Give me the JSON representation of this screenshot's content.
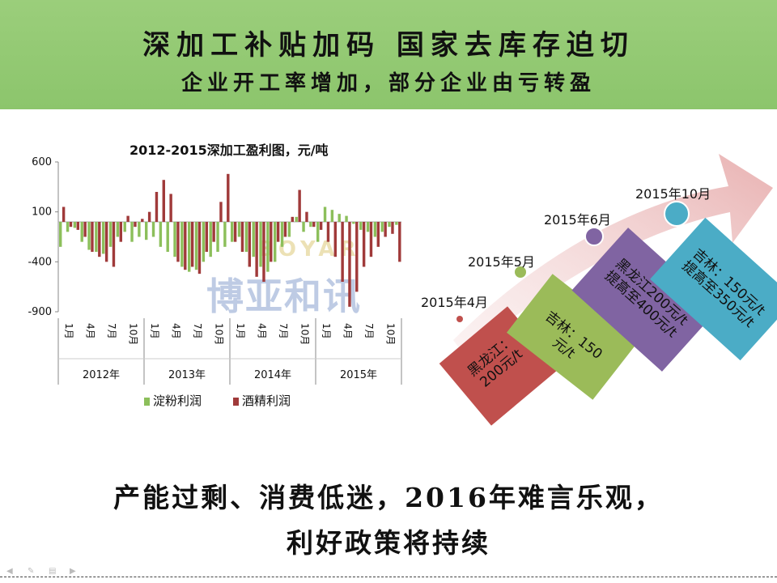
{
  "banner": {
    "line1": "深加工补贴加码  国家去库存迫切",
    "line2": "企业开工率增加，部分企业由亏转盈"
  },
  "watermark": {
    "cn": "博亚和讯",
    "en": "BOYAR"
  },
  "chart_data": {
    "type": "bar",
    "title": "2012-2015深加工盈利图，元/吨",
    "ylim": [
      -900,
      600
    ],
    "yticks": [
      "600",
      "100",
      "-400",
      "-900"
    ],
    "ytick_values": [
      600,
      100,
      -400,
      -900
    ],
    "month_ticks": [
      "1月",
      "4月",
      "7月",
      "10月"
    ],
    "years": [
      "2012年",
      "2013年",
      "2014年",
      "2015年"
    ],
    "series": [
      {
        "name": "淀粉利润",
        "color": "#8cbf5b",
        "values": [
          -250,
          -100,
          -60,
          -200,
          -280,
          -300,
          -320,
          -250,
          -150,
          -100,
          -200,
          -150,
          -180,
          -150,
          -250,
          -300,
          -350,
          -450,
          -500,
          -480,
          -400,
          -350,
          -300,
          -250,
          -200,
          -150,
          -300,
          -350,
          -450,
          -500,
          -400,
          -250,
          -150,
          50,
          -100,
          -50,
          -200,
          150,
          120,
          80,
          60,
          -20,
          -80,
          -100,
          -150,
          -100,
          -50,
          -30
        ]
      },
      {
        "name": "酒精利润",
        "color": "#a03a3a",
        "values": [
          150,
          -50,
          -80,
          -150,
          -300,
          -350,
          -400,
          -450,
          -200,
          60,
          -50,
          30,
          100,
          300,
          420,
          280,
          -400,
          -480,
          -450,
          -520,
          -300,
          -200,
          200,
          480,
          -200,
          -300,
          -450,
          -550,
          -600,
          -400,
          -200,
          -150,
          50,
          320,
          100,
          -50,
          -80,
          -200,
          -350,
          -600,
          -850,
          -700,
          -450,
          -350,
          -250,
          -150,
          -120,
          -400
        ]
      }
    ]
  },
  "timeline": {
    "points": [
      {
        "label": "2015年4月"
      },
      {
        "label": "2015年5月"
      },
      {
        "label": "2015年6月"
      },
      {
        "label": "2015年10月"
      }
    ],
    "boxes": [
      {
        "text": "黑龙江：200元/t",
        "color": "#c0504d"
      },
      {
        "text": "吉林：150元/t",
        "color": "#9bbb59"
      },
      {
        "text": "黑龙江200元/t 提高至400元/t",
        "color": "#8064a2"
      },
      {
        "text": "吉林：150元/t 提高至350元/t",
        "color": "#4bacc6"
      }
    ]
  },
  "bottom": {
    "line1": "产能过剩、消费低迷，2016年难言乐观，",
    "line2": "利好政策将持续"
  }
}
